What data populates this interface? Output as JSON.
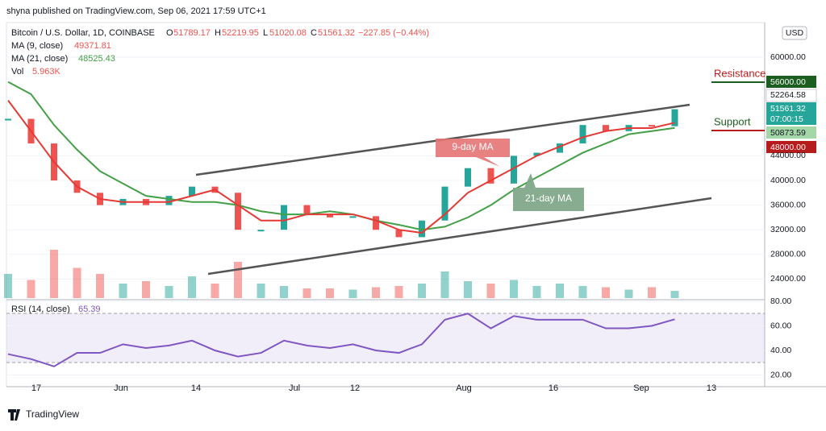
{
  "header": {
    "publisher": "shyna published on TradingView.com, Sep 06, 2021 17:59 UTC+1"
  },
  "legend": {
    "symbol": "Bitcoin / U.S. Dollar, 1D, COINBASE",
    "open_label": "O",
    "open": "51789.17",
    "high_label": "H",
    "high": "52219.95",
    "low_label": "L",
    "low": "51020.08",
    "close_label": "C",
    "close": "51561.32",
    "change": "−227.85 (−0.44%)",
    "ma9_name": "MA (9, close)",
    "ma9": "49371.81",
    "ma21_name": "MA (21, close)",
    "ma21": "48525.43",
    "vol_name": "Vol",
    "vol": "5.963K",
    "rsi_name": "RSI (14, close)",
    "rsi": "65.39"
  },
  "price_axis": {
    "currency": "USD",
    "ticks": [
      {
        "value": 60000,
        "label": "60000.00"
      },
      {
        "value": 44000,
        "label": "44000.00"
      },
      {
        "value": 40000,
        "label": "40000.00"
      },
      {
        "value": 36000,
        "label": "36000.00"
      },
      {
        "value": 32000,
        "label": "32000.00"
      },
      {
        "value": 28000,
        "label": "28000.00"
      },
      {
        "value": 24000,
        "label": "24000.00"
      }
    ]
  },
  "price_labels": {
    "resistance": "56000.00",
    "high": "52264.58",
    "last": "51561.32",
    "countdown": "07:00:15",
    "ma": "50873.59",
    "support": "48000.00"
  },
  "rsi_axis": {
    "ticks": [
      {
        "value": 80,
        "label": "80.00"
      },
      {
        "value": 60,
        "label": "60.00"
      },
      {
        "value": 40,
        "label": "40.00"
      },
      {
        "value": 20,
        "label": "20.00"
      }
    ]
  },
  "time_axis": {
    "labels": [
      "17",
      "Jun",
      "14",
      "Jul",
      "12",
      "Aug",
      "16",
      "Sep",
      "13"
    ]
  },
  "series": {
    "close": [
      50000,
      46000,
      40000,
      38000,
      36000,
      37000,
      36000,
      37500,
      39000,
      38000,
      32000,
      32000,
      36000,
      34500,
      34000,
      34200,
      32000,
      30800,
      33500,
      39000,
      42000,
      39500,
      44000,
      44500,
      46000,
      49000,
      48000,
      49000,
      48800,
      51561.32
    ],
    "ma9": [
      53000,
      48000,
      43000,
      39000,
      37000,
      36500,
      36500,
      36500,
      37500,
      38500,
      36000,
      33500,
      33500,
      34500,
      34500,
      34500,
      33500,
      32000,
      31500,
      34500,
      38000,
      40000,
      42000,
      44000,
      45500,
      47000,
      48000,
      48500,
      48500,
      49371.81
    ],
    "ma21": [
      56000,
      54000,
      49000,
      45000,
      41500,
      39500,
      37500,
      37000,
      36500,
      36500,
      36000,
      35000,
      34500,
      34500,
      35000,
      34500,
      33500,
      32800,
      32000,
      32500,
      34000,
      36000,
      38500,
      40500,
      42500,
      44500,
      46000,
      47500,
      48000,
      48525.43
    ],
    "volume": [
      20,
      15,
      40,
      25,
      20,
      12,
      14,
      10,
      18,
      12,
      30,
      12,
      10,
      8,
      8,
      7,
      9,
      10,
      12,
      22,
      14,
      12,
      15,
      10,
      12,
      10,
      9,
      7,
      9,
      5.963
    ],
    "rsi": [
      37,
      33,
      27,
      38,
      38,
      45,
      42,
      44,
      48,
      40,
      35,
      38,
      48,
      44,
      42,
      45,
      40,
      38,
      45,
      65,
      70,
      58,
      68,
      65,
      65,
      65,
      58,
      58,
      60,
      65.39
    ]
  },
  "annotations": {
    "resistance": "Resistance",
    "support": "Support",
    "ma9": "9-day MA",
    "ma21": "21-day MA"
  },
  "footer": {
    "brand": "TradingView"
  }
}
